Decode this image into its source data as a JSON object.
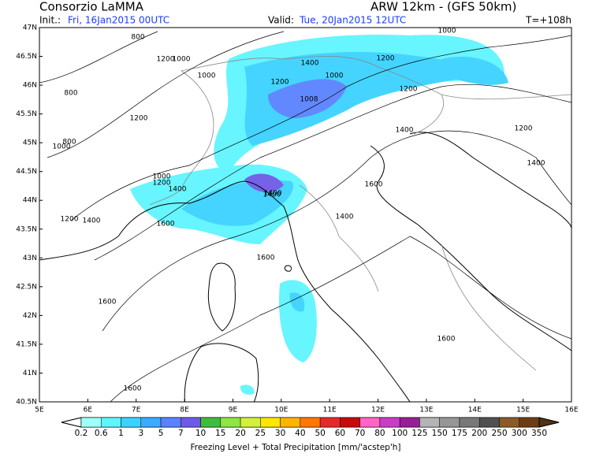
{
  "header": {
    "title": "Consorzio LaMMA",
    "model": "ARW 12km - (GFS 50km)",
    "init_label": "Init.:",
    "init_value": "Fri, 16Jan2015 00UTC",
    "valid_label": "Valid:",
    "valid_value": "Tue, 20Jan2015 12UTC",
    "lead": "T=+108h"
  },
  "axes": {
    "lat_labels": [
      "47N",
      "46.5N",
      "46N",
      "45.5N",
      "45N",
      "44.5N",
      "44N",
      "43.5N",
      "43N",
      "42.5N",
      "42N",
      "41.5N",
      "41N",
      "40.5N"
    ],
    "lon_labels": [
      "5E",
      "6E",
      "7E",
      "8E",
      "9E",
      "10E",
      "11E",
      "12E",
      "13E",
      "14E",
      "15E",
      "16E"
    ]
  },
  "contours": [
    "800",
    "1000",
    "1200",
    "800",
    "1000",
    "1200",
    "1000",
    "1400",
    "1000",
    "1200",
    "1008",
    "1200",
    "1000",
    "1200",
    "1400",
    "1400",
    "800",
    "1200",
    "1000",
    "1200",
    "1400",
    "1400",
    "1400",
    "1600",
    "1600",
    "1400",
    "1600",
    "1600",
    "1600",
    "1200",
    "1400",
    "1600"
  ],
  "legend": {
    "labels": [
      "0.2",
      "0.6",
      "1",
      "3",
      "5",
      "7",
      "10",
      "15",
      "20",
      "25",
      "30",
      "40",
      "50",
      "60",
      "70",
      "80",
      "100",
      "125",
      "150",
      "175",
      "200",
      "250",
      "300",
      "350"
    ],
    "colors": [
      "#ffffff",
      "#a0fffa",
      "#5ff5ff",
      "#3cd2ff",
      "#3caaff",
      "#5a82ff",
      "#6e5ae6",
      "#3cbe3c",
      "#8ce646",
      "#d2f03c",
      "#ffe600",
      "#ffb400",
      "#ff7800",
      "#e62828",
      "#c80a0a",
      "#ff64c8",
      "#c83cc8",
      "#961e96",
      "#b4b4b4",
      "#969696",
      "#787878",
      "#505050",
      "#8c5a28",
      "#6e3c14",
      "#503214"
    ],
    "title": "Freezing Level + Total Precipitation [mm/'acstep'h]"
  }
}
